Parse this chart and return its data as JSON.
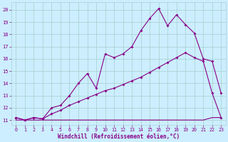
{
  "xlabel": "Windchill (Refroidissement éolien,°C)",
  "background_color": "#cceeff",
  "line_color": "#880088",
  "grid_color": "#aad4d4",
  "xlim": [
    -0.5,
    23.5
  ],
  "ylim": [
    10.6,
    20.6
  ],
  "xticks": [
    0,
    1,
    2,
    3,
    4,
    5,
    6,
    7,
    8,
    9,
    10,
    11,
    12,
    13,
    14,
    15,
    16,
    17,
    18,
    19,
    20,
    21,
    22,
    23
  ],
  "yticks": [
    11,
    12,
    13,
    14,
    15,
    16,
    17,
    18,
    19,
    20
  ],
  "series1_x": [
    0,
    1,
    2,
    3,
    4,
    5,
    6,
    7,
    8,
    9,
    10,
    11,
    12,
    13,
    14,
    15,
    16,
    17,
    18,
    19,
    20,
    21,
    22,
    23
  ],
  "series1_y": [
    11.2,
    11.0,
    11.2,
    11.1,
    12.0,
    12.2,
    13.0,
    14.0,
    14.8,
    13.6,
    16.4,
    16.1,
    16.4,
    17.0,
    18.3,
    19.3,
    20.1,
    18.7,
    19.6,
    18.8,
    18.1,
    16.0,
    15.8,
    13.2
  ],
  "series2_x": [
    0,
    1,
    2,
    3,
    4,
    5,
    6,
    7,
    8,
    9,
    10,
    11,
    12,
    13,
    14,
    15,
    16,
    17,
    18,
    19,
    20,
    21,
    22,
    23
  ],
  "series2_y": [
    11.2,
    11.0,
    11.2,
    11.1,
    11.5,
    11.8,
    12.2,
    12.5,
    12.8,
    13.1,
    13.4,
    13.6,
    13.9,
    14.2,
    14.5,
    14.9,
    15.3,
    15.7,
    16.1,
    16.5,
    16.1,
    15.8,
    13.2,
    11.2
  ],
  "series3_x": [
    0,
    1,
    2,
    3,
    9,
    10,
    21,
    22,
    23
  ],
  "series3_y": [
    11.0,
    11.0,
    11.0,
    11.0,
    11.0,
    11.0,
    11.0,
    11.2,
    11.2
  ]
}
